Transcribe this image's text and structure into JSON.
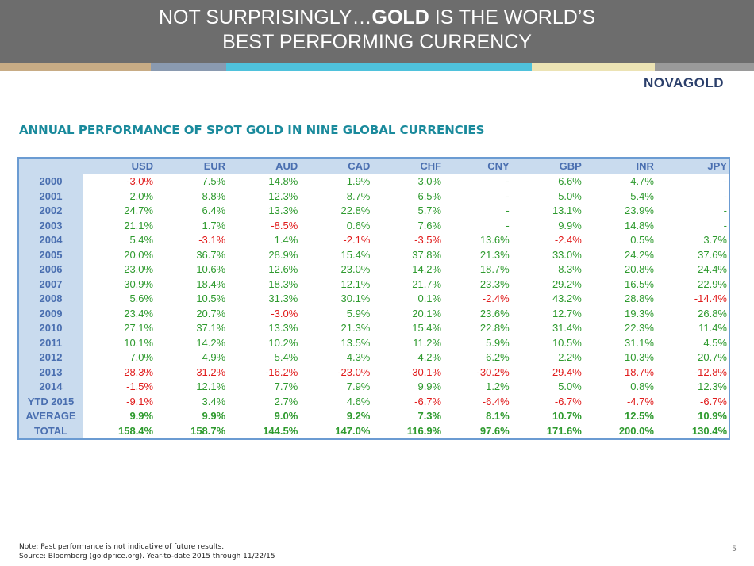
{
  "header": {
    "title_start": "NOT SURPRISINGLY…",
    "title_bold": "GOLD",
    "title_end": " IS THE WORLD’S",
    "title_line2": "BEST PERFORMING CURRENCY"
  },
  "logo": "NOVAGOLD",
  "subtitle": "ANNUAL PERFORMANCE OF SPOT GOLD IN NINE GLOBAL CURRENCIES",
  "table": {
    "columns": [
      "USD",
      "EUR",
      "AUD",
      "CAD",
      "CHF",
      "CNY",
      "GBP",
      "INR",
      "JPY"
    ],
    "rows": [
      {
        "label": "2000",
        "cells": [
          "-3.0%",
          "7.5%",
          "14.8%",
          "1.9%",
          "3.0%",
          "-",
          "6.6%",
          "4.7%",
          "-"
        ]
      },
      {
        "label": "2001",
        "cells": [
          "2.0%",
          "8.8%",
          "12.3%",
          "8.7%",
          "6.5%",
          "-",
          "5.0%",
          "5.4%",
          "-"
        ]
      },
      {
        "label": "2002",
        "cells": [
          "24.7%",
          "6.4%",
          "13.3%",
          "22.8%",
          "5.7%",
          "-",
          "13.1%",
          "23.9%",
          "-"
        ]
      },
      {
        "label": "2003",
        "cells": [
          "21.1%",
          "1.7%",
          "-8.5%",
          "0.6%",
          "7.6%",
          "-",
          "9.9%",
          "14.8%",
          "-"
        ]
      },
      {
        "label": "2004",
        "cells": [
          "5.4%",
          "-3.1%",
          "1.4%",
          "-2.1%",
          "-3.5%",
          "13.6%",
          "-2.4%",
          "0.5%",
          "3.7%"
        ]
      },
      {
        "label": "2005",
        "cells": [
          "20.0%",
          "36.7%",
          "28.9%",
          "15.4%",
          "37.8%",
          "21.3%",
          "33.0%",
          "24.2%",
          "37.6%"
        ]
      },
      {
        "label": "2006",
        "cells": [
          "23.0%",
          "10.6%",
          "12.6%",
          "23.0%",
          "14.2%",
          "18.7%",
          "8.3%",
          "20.8%",
          "24.4%"
        ]
      },
      {
        "label": "2007",
        "cells": [
          "30.9%",
          "18.4%",
          "18.3%",
          "12.1%",
          "21.7%",
          "23.3%",
          "29.2%",
          "16.5%",
          "22.9%"
        ]
      },
      {
        "label": "2008",
        "cells": [
          "5.6%",
          "10.5%",
          "31.3%",
          "30.1%",
          "0.1%",
          "-2.4%",
          "43.2%",
          "28.8%",
          "-14.4%"
        ]
      },
      {
        "label": "2009",
        "cells": [
          "23.4%",
          "20.7%",
          "-3.0%",
          "5.9%",
          "20.1%",
          "23.6%",
          "12.7%",
          "19.3%",
          "26.8%"
        ]
      },
      {
        "label": "2010",
        "cells": [
          "27.1%",
          "37.1%",
          "13.3%",
          "21.3%",
          "15.4%",
          "22.8%",
          "31.4%",
          "22.3%",
          "11.4%"
        ]
      },
      {
        "label": "2011",
        "cells": [
          "10.1%",
          "14.2%",
          "10.2%",
          "13.5%",
          "11.2%",
          "5.9%",
          "10.5%",
          "31.1%",
          "4.5%"
        ]
      },
      {
        "label": "2012",
        "cells": [
          "7.0%",
          "4.9%",
          "5.4%",
          "4.3%",
          "4.2%",
          "6.2%",
          "2.2%",
          "10.3%",
          "20.7%"
        ]
      },
      {
        "label": "2013",
        "cells": [
          "-28.3%",
          "-31.2%",
          "-16.2%",
          "-23.0%",
          "-30.1%",
          "-30.2%",
          "-29.4%",
          "-18.7%",
          "-12.8%"
        ]
      },
      {
        "label": "2014",
        "cells": [
          "-1.5%",
          "12.1%",
          "7.7%",
          "7.9%",
          "9.9%",
          "1.2%",
          "5.0%",
          "0.8%",
          "12.3%"
        ]
      },
      {
        "label": "YTD 2015",
        "cells": [
          "-9.1%",
          "3.4%",
          "2.7%",
          "4.6%",
          "-6.7%",
          "-6.4%",
          "-6.7%",
          "-4.7%",
          "-6.7%"
        ]
      },
      {
        "label": "AVERAGE",
        "cells": [
          "9.9%",
          "9.9%",
          "9.0%",
          "9.2%",
          "7.3%",
          "8.1%",
          "10.7%",
          "12.5%",
          "10.9%"
        ]
      },
      {
        "label": "TOTAL",
        "cells": [
          "158.4%",
          "158.7%",
          "144.5%",
          "147.0%",
          "116.9%",
          "97.6%",
          "171.6%",
          "200.0%",
          "130.4%"
        ]
      }
    ]
  },
  "notes": [
    "Note: Past performance is not indicative of future results.",
    "Source: Bloomberg (goldprice.org). Year-to-date 2015 through 11/22/15"
  ],
  "page_number": "5"
}
